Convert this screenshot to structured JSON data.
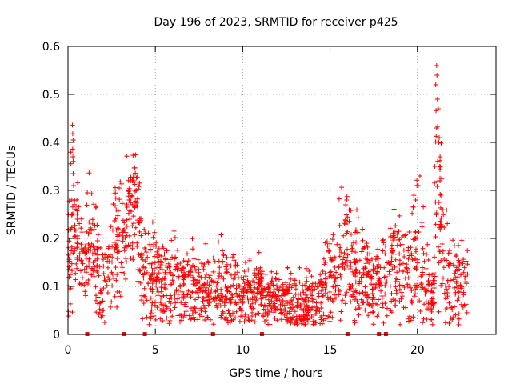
{
  "chart_data": {
    "type": "scatter",
    "title": "Day 196 of 2023, SRMTID for receiver p425",
    "xlabel": "GPS time / hours",
    "ylabel": "SRMTID / TECUs",
    "xlim": [
      0,
      24.5
    ],
    "ylim": [
      0,
      0.6
    ],
    "xticks": [
      0,
      5,
      10,
      15,
      20
    ],
    "yticks": [
      0,
      0.1,
      0.2,
      0.3,
      0.4,
      0.5,
      0.6
    ],
    "grid": true,
    "marker": "+",
    "color": "#ff0000",
    "zero_markers_x": [
      1.1,
      3.2,
      4.4,
      8.3,
      11.1,
      16.0,
      17.8,
      18.2
    ],
    "profile": [
      [
        0.0,
        0.14,
        0.05
      ],
      [
        0.15,
        0.2,
        0.08
      ],
      [
        0.3,
        0.28,
        0.1
      ],
      [
        0.45,
        0.19,
        0.06
      ],
      [
        0.7,
        0.17,
        0.05
      ],
      [
        1.0,
        0.12,
        0.05
      ],
      [
        1.3,
        0.2,
        0.07
      ],
      [
        1.6,
        0.17,
        0.07
      ],
      [
        1.8,
        0.08,
        0.04
      ],
      [
        2.0,
        0.09,
        0.04
      ],
      [
        2.3,
        0.13,
        0.05
      ],
      [
        2.6,
        0.18,
        0.06
      ],
      [
        2.9,
        0.21,
        0.06
      ],
      [
        3.3,
        0.22,
        0.07
      ],
      [
        3.6,
        0.27,
        0.06
      ],
      [
        3.9,
        0.25,
        0.06
      ],
      [
        4.2,
        0.15,
        0.05
      ],
      [
        4.6,
        0.12,
        0.05
      ],
      [
        5.0,
        0.12,
        0.05
      ],
      [
        5.5,
        0.11,
        0.05
      ],
      [
        6.0,
        0.1,
        0.05
      ],
      [
        6.5,
        0.09,
        0.04
      ],
      [
        7.0,
        0.09,
        0.04
      ],
      [
        7.5,
        0.1,
        0.04
      ],
      [
        8.0,
        0.08,
        0.04
      ],
      [
        8.5,
        0.1,
        0.04
      ],
      [
        9.0,
        0.1,
        0.04
      ],
      [
        9.5,
        0.1,
        0.04
      ],
      [
        10.0,
        0.08,
        0.03
      ],
      [
        10.5,
        0.09,
        0.03
      ],
      [
        11.0,
        0.1,
        0.03
      ],
      [
        11.5,
        0.07,
        0.03
      ],
      [
        12.0,
        0.08,
        0.03
      ],
      [
        12.5,
        0.07,
        0.03
      ],
      [
        13.0,
        0.07,
        0.03
      ],
      [
        13.5,
        0.06,
        0.03
      ],
      [
        14.0,
        0.07,
        0.03
      ],
      [
        14.5,
        0.08,
        0.04
      ],
      [
        15.0,
        0.1,
        0.05
      ],
      [
        15.5,
        0.15,
        0.06
      ],
      [
        16.0,
        0.18,
        0.07
      ],
      [
        16.5,
        0.13,
        0.05
      ],
      [
        17.0,
        0.12,
        0.05
      ],
      [
        17.5,
        0.1,
        0.05
      ],
      [
        18.0,
        0.12,
        0.05
      ],
      [
        18.5,
        0.16,
        0.06
      ],
      [
        19.0,
        0.13,
        0.05
      ],
      [
        19.5,
        0.12,
        0.05
      ],
      [
        20.0,
        0.2,
        0.08
      ],
      [
        20.5,
        0.1,
        0.05
      ],
      [
        20.9,
        0.07,
        0.04
      ],
      [
        21.1,
        0.3,
        0.14
      ],
      [
        21.3,
        0.25,
        0.1
      ],
      [
        21.6,
        0.13,
        0.06
      ],
      [
        22.0,
        0.1,
        0.05
      ],
      [
        22.5,
        0.1,
        0.04
      ],
      [
        22.9,
        0.1,
        0.04
      ]
    ],
    "spikes": [
      [
        0.25,
        0.436
      ],
      [
        0.3,
        0.405
      ],
      [
        0.28,
        0.37
      ],
      [
        0.3,
        0.335
      ],
      [
        0.32,
        0.31
      ],
      [
        0.22,
        0.25
      ],
      [
        3.6,
        0.32
      ],
      [
        3.75,
        0.32
      ],
      [
        3.9,
        0.3
      ],
      [
        3.5,
        0.28
      ],
      [
        15.95,
        0.28
      ],
      [
        15.9,
        0.27
      ],
      [
        20.15,
        0.33
      ],
      [
        20.05,
        0.31
      ],
      [
        19.9,
        0.28
      ],
      [
        21.1,
        0.56
      ],
      [
        21.12,
        0.54
      ],
      [
        21.05,
        0.52
      ],
      [
        21.15,
        0.49
      ],
      [
        21.2,
        0.47
      ],
      [
        21.1,
        0.43
      ],
      [
        21.25,
        0.41
      ],
      [
        21.22,
        0.4
      ],
      [
        21.3,
        0.37
      ],
      [
        21.28,
        0.35
      ],
      [
        21.0,
        0.35
      ],
      [
        21.3,
        0.32
      ],
      [
        21.35,
        0.29
      ],
      [
        21.4,
        0.26
      ]
    ]
  }
}
